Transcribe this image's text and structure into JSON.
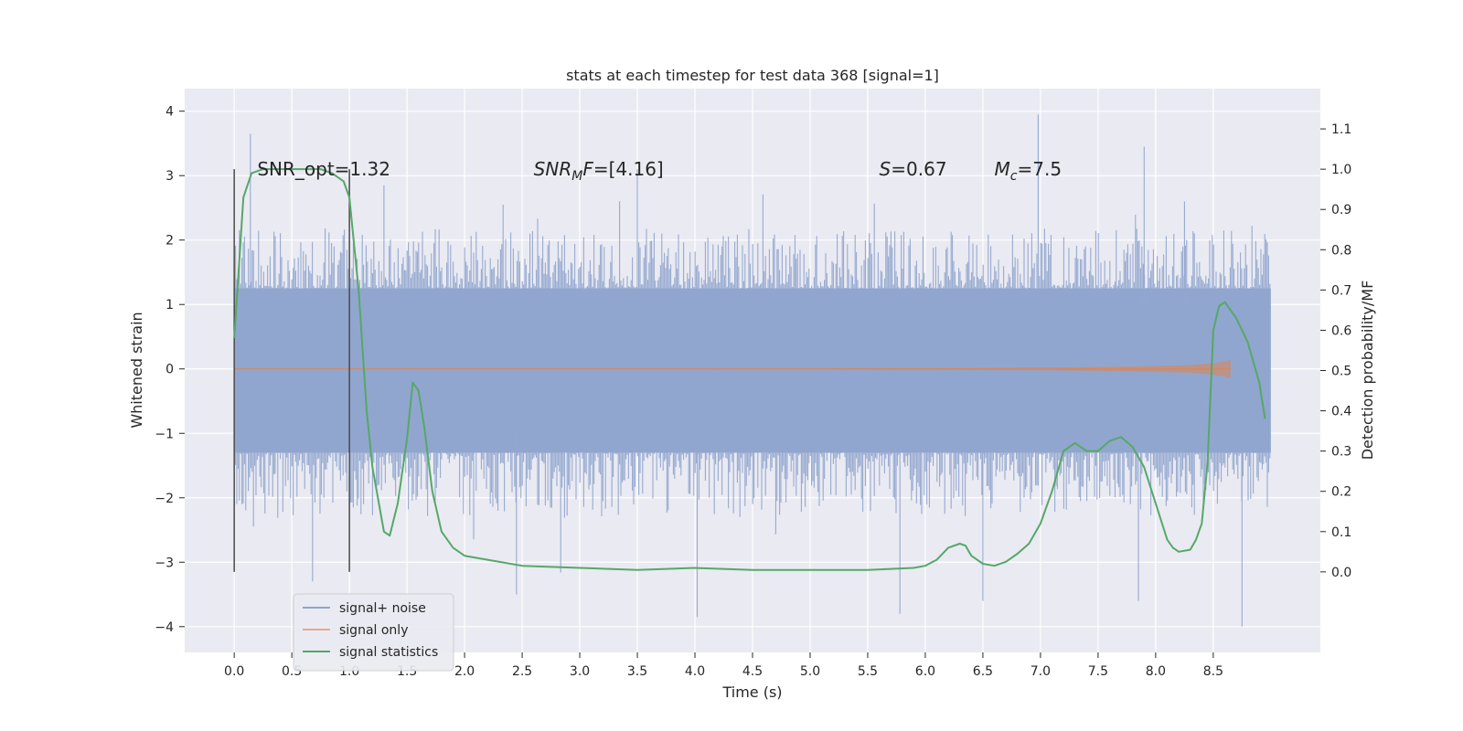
{
  "chart_data": {
    "type": "line",
    "title": "stats at each timestep for test data 368 [signal=1]",
    "xlabel": "Time (s)",
    "ylabel_left": "Whitened strain",
    "ylabel_right": "Detection probability/MF",
    "xlim": [
      -0.43,
      9.43
    ],
    "ylim_left": [
      -4.4,
      4.35
    ],
    "ylim_right": [
      -0.2,
      1.2
    ],
    "x_ticks": [
      "0.0",
      "0.5",
      "1.0",
      "1.5",
      "2.0",
      "2.5",
      "3.0",
      "3.5",
      "4.0",
      "4.5",
      "5.0",
      "5.5",
      "6.0",
      "6.5",
      "7.0",
      "7.5",
      "8.0",
      "8.5"
    ],
    "x_tick_values": [
      0,
      0.5,
      1,
      1.5,
      2,
      2.5,
      3,
      3.5,
      4,
      4.5,
      5,
      5.5,
      6,
      6.5,
      7,
      7.5,
      8,
      8.5
    ],
    "y_left_ticks": [
      "−4",
      "−3",
      "−2",
      "−1",
      "0",
      "1",
      "2",
      "3",
      "4"
    ],
    "y_left_tick_values": [
      -4,
      -3,
      -2,
      -1,
      0,
      1,
      2,
      3,
      4
    ],
    "y_right_ticks": [
      "0.0",
      "0.1",
      "0.2",
      "0.3",
      "0.4",
      "0.5",
      "0.6",
      "0.7",
      "0.8",
      "0.9",
      "1.0",
      "1.1"
    ],
    "y_right_tick_values": [
      0,
      0.1,
      0.2,
      0.3,
      0.4,
      0.5,
      0.6,
      0.7,
      0.8,
      0.9,
      1.0,
      1.1
    ],
    "grid": true,
    "vertical_lines": [
      0.0,
      1.0
    ],
    "vertical_line_range": [
      -3.15,
      3.1
    ],
    "noise_envelope": {
      "t_start": 0.0,
      "t_end": 9.0,
      "band": [
        -1.3,
        1.25
      ],
      "typical_peak": 2.0,
      "max_peak": 3.95,
      "min_trough": -4.0
    },
    "signal_only": {
      "t": [
        0,
        1,
        2,
        3,
        4,
        5,
        6,
        7,
        7.5,
        8,
        8.3,
        8.5,
        8.6,
        8.65
      ],
      "amplitude": [
        0.005,
        0.005,
        0.006,
        0.007,
        0.008,
        0.01,
        0.013,
        0.02,
        0.03,
        0.045,
        0.06,
        0.09,
        0.12,
        0.15
      ]
    },
    "series": [
      {
        "name": "signal statistics",
        "axis": "right",
        "t": [
          0.0,
          0.08,
          0.15,
          0.25,
          0.5,
          0.75,
          0.85,
          0.95,
          1.0,
          1.08,
          1.15,
          1.2,
          1.3,
          1.35,
          1.42,
          1.5,
          1.55,
          1.6,
          1.65,
          1.72,
          1.8,
          1.9,
          2.0,
          2.2,
          2.5,
          3.0,
          3.5,
          4.0,
          4.5,
          5.0,
          5.5,
          5.9,
          6.0,
          6.1,
          6.2,
          6.3,
          6.35,
          6.4,
          6.45,
          6.5,
          6.6,
          6.7,
          6.8,
          6.9,
          7.0,
          7.1,
          7.2,
          7.3,
          7.4,
          7.5,
          7.6,
          7.7,
          7.8,
          7.9,
          8.0,
          8.1,
          8.15,
          8.2,
          8.3,
          8.35,
          8.4,
          8.45,
          8.5,
          8.55,
          8.6,
          8.7,
          8.8,
          8.9,
          8.95
        ],
        "values": [
          0.58,
          0.93,
          0.99,
          1.0,
          1.0,
          1.0,
          0.99,
          0.97,
          0.93,
          0.7,
          0.4,
          0.26,
          0.1,
          0.09,
          0.17,
          0.33,
          0.47,
          0.45,
          0.36,
          0.2,
          0.1,
          0.06,
          0.04,
          0.03,
          0.015,
          0.01,
          0.005,
          0.01,
          0.005,
          0.005,
          0.005,
          0.01,
          0.015,
          0.03,
          0.06,
          0.07,
          0.065,
          0.04,
          0.03,
          0.02,
          0.015,
          0.025,
          0.045,
          0.07,
          0.12,
          0.2,
          0.3,
          0.32,
          0.3,
          0.3,
          0.325,
          0.335,
          0.31,
          0.26,
          0.17,
          0.08,
          0.06,
          0.05,
          0.055,
          0.08,
          0.12,
          0.27,
          0.6,
          0.66,
          0.67,
          0.63,
          0.57,
          0.47,
          0.38
        ]
      }
    ],
    "annotations": [
      {
        "name": "snr-opt",
        "text": "SNR_opt=1.32",
        "x": 0.2,
        "y": 1.0
      },
      {
        "name": "snr-mf",
        "base": "SNR",
        "sub": "M",
        "tail": "F",
        "rest": "=[4.16]",
        "x": 2.6,
        "y": 1.0
      },
      {
        "name": "s-value",
        "base": "S",
        "rest": "=0.67",
        "x": 5.6,
        "y": 1.0
      },
      {
        "name": "mc-value",
        "base": "M",
        "sub": "c",
        "rest": "=7.5",
        "x": 6.6,
        "y": 1.0
      }
    ],
    "legend": {
      "position": "lower-left",
      "entries": [
        {
          "label": "signal+ noise",
          "color": "#8fa4cc"
        },
        {
          "label": "signal only",
          "color": "#e8a88b"
        },
        {
          "label": "signal statistics",
          "color": "#55a868"
        }
      ]
    },
    "colors": {
      "background": "#eaeaf2",
      "grid": "#ffffff",
      "noise": "#91a6ce",
      "signal": "#dd8452",
      "stats": "#55a868",
      "vline": "#4a4a4a"
    }
  }
}
